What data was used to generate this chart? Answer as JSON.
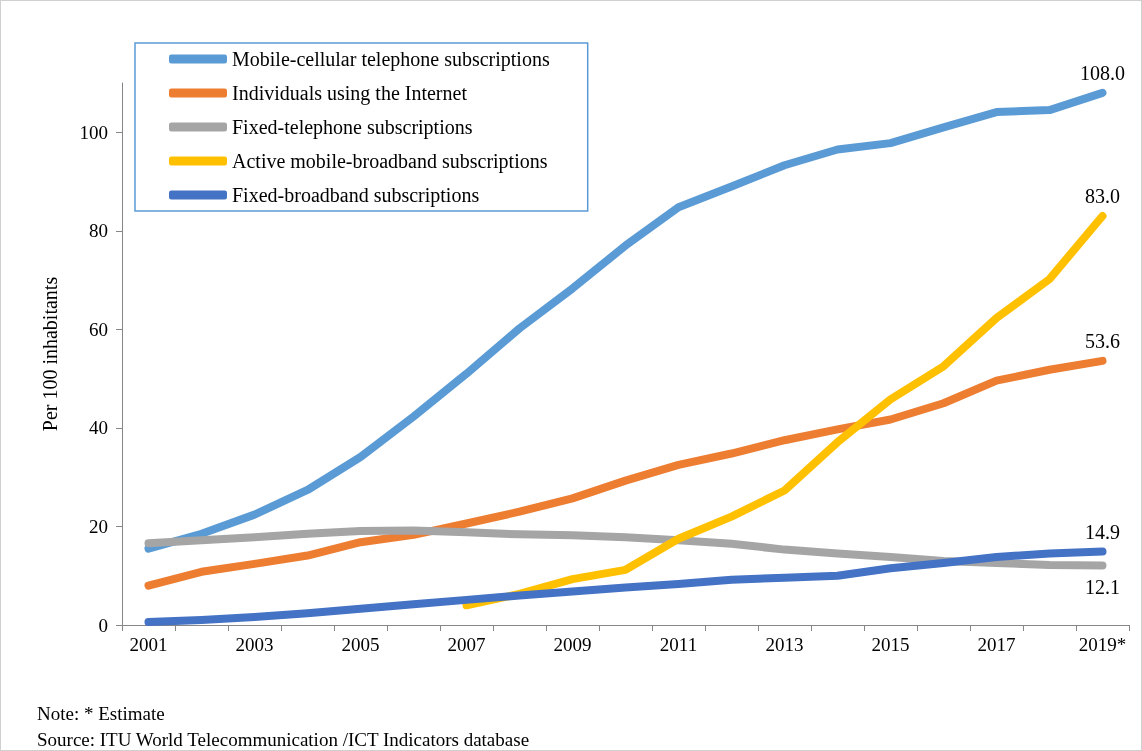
{
  "chart_data": {
    "type": "line",
    "ylabel": "Per 100 inhabitants",
    "categories": [
      "2001",
      null,
      "2003",
      null,
      "2005",
      null,
      "2007",
      null,
      "2009",
      null,
      "2011",
      null,
      "2013",
      null,
      "2015",
      null,
      "2017",
      null,
      "2019*"
    ],
    "ylim": [
      0,
      110
    ],
    "yticks": [
      0,
      20,
      40,
      60,
      80,
      100
    ],
    "grid": false,
    "legend": "top left",
    "marker": "none",
    "line_style": "solid",
    "series": [
      {
        "name": "Mobile-cellular telephone subscriptions",
        "color": "#5b9bd5",
        "values": [
          15.5,
          18.5,
          22.4,
          27.4,
          34.1,
          42.3,
          51.0,
          60.2,
          68.3,
          77.0,
          84.8,
          89.0,
          93.3,
          96.5,
          97.8,
          101.0,
          104.1,
          104.5,
          108.0
        ],
        "value_labels": [
          null,
          null,
          null,
          null,
          null,
          null,
          null,
          null,
          null,
          null,
          null,
          null,
          null,
          null,
          null,
          null,
          null,
          null,
          "108.0"
        ]
      },
      {
        "name": "Individuals using the Internet",
        "color": "#ed7d31",
        "values": [
          8.0,
          10.8,
          12.4,
          14.1,
          16.8,
          18.3,
          20.6,
          23.0,
          25.7,
          29.3,
          32.5,
          34.8,
          37.5,
          39.7,
          41.7,
          45.0,
          49.6,
          51.8,
          53.6
        ],
        "value_labels": [
          null,
          null,
          null,
          null,
          null,
          null,
          null,
          null,
          null,
          null,
          null,
          null,
          null,
          null,
          null,
          null,
          null,
          null,
          "53.6"
        ]
      },
      {
        "name": "Fixed-telephone subscriptions",
        "color": "#a5a5a5",
        "values": [
          16.6,
          17.2,
          17.8,
          18.5,
          19.1,
          19.2,
          18.8,
          18.4,
          18.2,
          17.8,
          17.2,
          16.5,
          15.3,
          14.5,
          13.8,
          13.0,
          12.6,
          12.2,
          12.1
        ],
        "value_labels": [
          null,
          null,
          null,
          null,
          null,
          null,
          null,
          null,
          null,
          null,
          null,
          null,
          null,
          null,
          null,
          null,
          null,
          null,
          "12.1"
        ]
      },
      {
        "name": "Active mobile-broadband subscriptions",
        "color": "#ffc000",
        "values": [
          null,
          null,
          null,
          null,
          null,
          null,
          4.0,
          6.3,
          9.3,
          11.2,
          17.5,
          22.0,
          27.3,
          37.1,
          45.8,
          52.5,
          62.3,
          70.2,
          83.0
        ],
        "value_labels": [
          null,
          null,
          null,
          null,
          null,
          null,
          null,
          null,
          null,
          null,
          null,
          null,
          null,
          null,
          null,
          null,
          null,
          null,
          "83.0"
        ]
      },
      {
        "name": "Fixed-broadband subscriptions",
        "color": "#4472c4",
        "values": [
          0.6,
          1.0,
          1.6,
          2.4,
          3.3,
          4.2,
          5.1,
          6.0,
          6.8,
          7.6,
          8.3,
          9.2,
          9.6,
          10.0,
          11.5,
          12.6,
          13.8,
          14.5,
          14.9
        ],
        "value_labels": [
          null,
          null,
          null,
          null,
          null,
          null,
          null,
          null,
          null,
          null,
          null,
          null,
          null,
          null,
          null,
          null,
          null,
          null,
          "14.9"
        ]
      }
    ],
    "annotations": [
      "Note: * Estimate",
      "Source:  ITU World Telecommunication /ICT Indicators database"
    ]
  }
}
